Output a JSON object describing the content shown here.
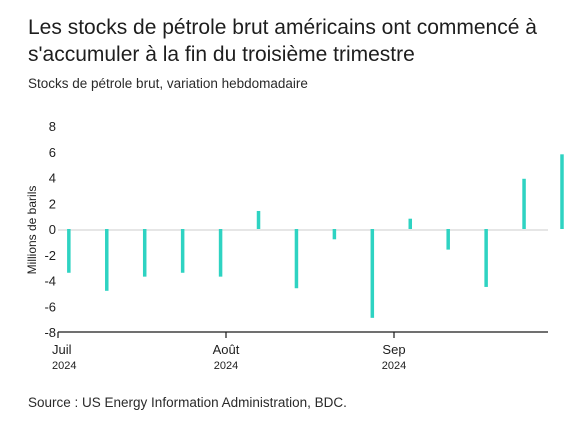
{
  "title": "Les stocks de pétrole brut américains ont commencé à s'accumuler à la fin du troisième trimestre",
  "subtitle": "Stocks de pétrole brut, variation hebdomadaire",
  "source": "Source : US Energy Information Administration, BDC.",
  "colors": {
    "bar": "#2ed3c2",
    "axis": "#1a1a1a",
    "text": "#1e1e1e"
  },
  "chart_data": {
    "type": "bar",
    "ylabel": "Millions de barils",
    "ylim": [
      -8,
      8
    ],
    "yticks": [
      8,
      6,
      4,
      2,
      0,
      -2,
      -4,
      -6,
      -8
    ],
    "x_tick_labels": [
      {
        "label": "Juil",
        "year": "2024",
        "at": "2024-07-01"
      },
      {
        "label": "Août",
        "year": "2024",
        "at": "2024-08-01"
      },
      {
        "label": "Sep",
        "year": "2024",
        "at": "2024-09-01"
      }
    ],
    "x_range": [
      "2024-07-01",
      "2024-09-30"
    ],
    "series": [
      {
        "values": [
          {
            "date": "2024-07-03",
            "value": -3.4
          },
          {
            "date": "2024-07-10",
            "value": -4.8
          },
          {
            "date": "2024-07-17",
            "value": -3.7
          },
          {
            "date": "2024-07-24",
            "value": -3.4
          },
          {
            "date": "2024-07-31",
            "value": -3.7
          },
          {
            "date": "2024-08-07",
            "value": 1.4
          },
          {
            "date": "2024-08-14",
            "value": -4.6
          },
          {
            "date": "2024-08-21",
            "value": -0.8
          },
          {
            "date": "2024-08-28",
            "value": -6.9
          },
          {
            "date": "2024-09-04",
            "value": 0.8
          },
          {
            "date": "2024-09-11",
            "value": -1.6
          },
          {
            "date": "2024-09-18",
            "value": -4.5
          },
          {
            "date": "2024-09-25",
            "value": 3.9
          },
          {
            "date": "2024-10-02",
            "value": 5.8
          }
        ]
      }
    ]
  }
}
